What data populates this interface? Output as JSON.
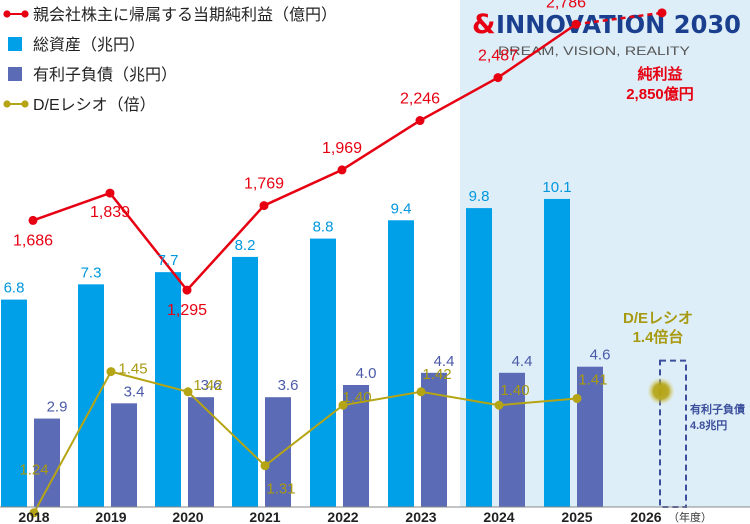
{
  "legend": [
    {
      "label": "親会社株主に帰属する当期純利益（億円）",
      "kind": "line-dot",
      "color": "#e60012"
    },
    {
      "label": "総資産（兆円）",
      "kind": "square",
      "color": "#00a0e9"
    },
    {
      "label": "有利子負債（兆円）",
      "kind": "square",
      "color": "#5b6bb5"
    },
    {
      "label": "D/Eレシオ（倍）",
      "kind": "line-dot",
      "color": "#b5a414"
    }
  ],
  "brand": {
    "ampersand": "&",
    "title": "INNOVATION 2030",
    "subtitle": "DREAM, VISION, REALITY"
  },
  "chart_data": {
    "type": "bar",
    "categories": [
      "2018",
      "2019",
      "2020",
      "2021",
      "2022",
      "2023",
      "2024",
      "2025",
      "2026"
    ],
    "x_unit_label": "（年度）",
    "highlight_band": [
      "2024",
      "2026"
    ],
    "series": [
      {
        "name": "総資産（兆円）",
        "type": "bar",
        "color": "#00a0e9",
        "values": [
          6.8,
          7.3,
          7.7,
          8.2,
          8.8,
          9.4,
          9.8,
          10.1,
          null
        ],
        "labels": [
          "6.8",
          "7.3",
          "7.7",
          "8.2",
          "8.8",
          "9.4",
          "9.8",
          "10.1",
          ""
        ]
      },
      {
        "name": "有利子負債（兆円）",
        "type": "bar",
        "color": "#5b6bb5",
        "values": [
          2.9,
          3.4,
          3.6,
          3.6,
          4.0,
          4.4,
          4.4,
          4.6,
          4.8
        ],
        "labels": [
          "2.9",
          "3.4",
          "3.6",
          "3.6",
          "4.0",
          "4.4",
          "4.4",
          "4.6",
          ""
        ],
        "target_index": 8
      },
      {
        "name": "親会社株主に帰属する当期純利益（億円）",
        "type": "line",
        "color": "#e60012",
        "values": [
          1686,
          1839,
          1295,
          1769,
          1969,
          2246,
          2487,
          2786,
          2850
        ],
        "labels": [
          "1,686",
          "1,839",
          "1,295",
          "1,769",
          "1,969",
          "2,246",
          "2,487",
          "2,786",
          ""
        ],
        "target_index": 8
      },
      {
        "name": "D/Eレシオ（倍）",
        "type": "line",
        "color": "#b5a414",
        "values": [
          1.24,
          1.45,
          1.42,
          1.31,
          1.4,
          1.42,
          1.4,
          1.41,
          1.4
        ],
        "labels": [
          "1.24",
          "1.45",
          "1.42",
          "1.31",
          "1.40",
          "1.42",
          "1.40",
          "1.41",
          ""
        ],
        "target_index": 8
      }
    ],
    "targets": {
      "profit": [
        "純利益",
        "2,850億円"
      ],
      "de_ratio": [
        "D/Eレシオ",
        "1.4倍台"
      ],
      "debt": [
        "有利子負債",
        "4.8兆円"
      ]
    }
  }
}
